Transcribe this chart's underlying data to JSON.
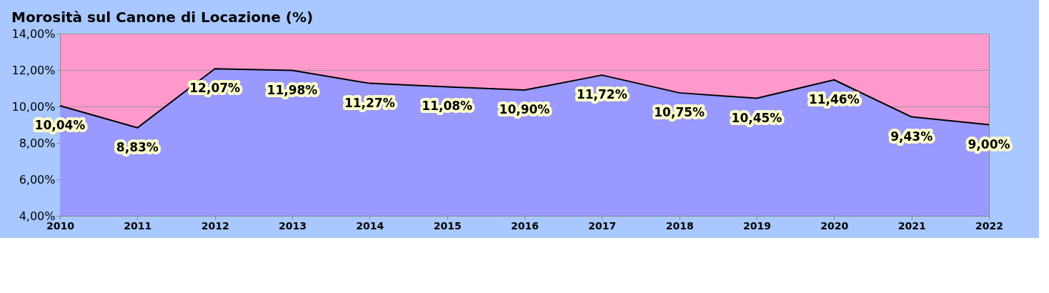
{
  "chart_data": {
    "type": "area",
    "title": "Morosità sul Canone di Locazione (%)",
    "categories": [
      "2010",
      "2011",
      "2012",
      "2013",
      "2014",
      "2015",
      "2016",
      "2017",
      "2018",
      "2019",
      "2020",
      "2021",
      "2022"
    ],
    "series": [
      {
        "color": "#9999ff",
        "values": [
          10.04,
          8.83,
          12.07,
          11.98,
          11.27,
          11.08,
          10.9,
          11.72,
          10.75,
          10.45,
          11.46,
          9.43,
          9.0
        ],
        "value_labels": [
          "10,04%",
          "8,83%",
          "12,07%",
          "11,98%",
          "11,27%",
          "11,08%",
          "10,90%",
          "11,72%",
          "10,75%",
          "10,45%",
          "11,46%",
          "9,43%",
          "9,00%"
        ]
      }
    ],
    "ylim": [
      4,
      14
    ],
    "yticks": [
      {
        "value": 4,
        "label": "4,00%"
      },
      {
        "value": 6,
        "label": "6,00%"
      },
      {
        "value": 8,
        "label": "8,00%"
      },
      {
        "value": 10,
        "label": "10,00%"
      },
      {
        "value": 12,
        "label": "12,00%"
      },
      {
        "value": 14,
        "label": "14,00%"
      }
    ],
    "grid": "y"
  }
}
